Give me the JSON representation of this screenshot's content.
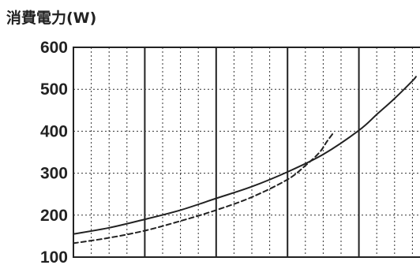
{
  "chart_data": {
    "type": "line",
    "title": "",
    "ylabel": "消費電力(W)",
    "xlabel": "",
    "ylim": [
      100,
      600
    ],
    "yticks": [
      600,
      500,
      400,
      300,
      200,
      100
    ],
    "xlim": [
      0,
      20
    ],
    "grid": true,
    "grid_major_every": 4,
    "series": [
      {
        "line_style": "solid",
        "x": [
          0,
          2,
          4,
          6,
          8,
          10,
          12,
          14,
          16,
          17,
          18,
          19,
          19.2
        ],
        "y": [
          155,
          170,
          190,
          212,
          240,
          268,
          303,
          345,
          402,
          440,
          478,
          520,
          530
        ]
      },
      {
        "line_style": "dashed",
        "x": [
          0,
          2,
          4,
          6,
          8,
          10,
          12,
          13,
          13.8,
          14.2,
          14.6
        ],
        "y": [
          133,
          146,
          163,
          186,
          212,
          243,
          285,
          318,
          350,
          375,
          398
        ]
      }
    ]
  },
  "colors": {
    "ink": "#222222",
    "grid_minor": "#333333",
    "background": "#ffffff"
  }
}
